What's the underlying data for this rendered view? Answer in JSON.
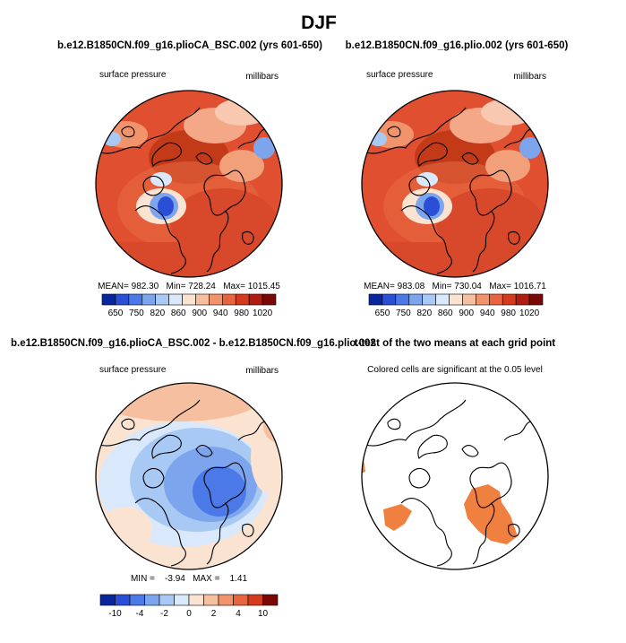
{
  "chart_data": {
    "type": "polar-map",
    "title": "DJF",
    "panels": [
      {
        "id": "control",
        "title": "b.e12.B1850CN.f09_g16.plioCA_BSC.002 (yrs 601-650)",
        "variable": "surface pressure",
        "units": "millibars",
        "stats_text": "MEAN= 982.30   Min= 728.24   Max= 1015.45",
        "stats": {
          "mean": 982.3,
          "min": 728.24,
          "max": 1015.45
        },
        "colorbar_ticks": [
          "650",
          "750",
          "820",
          "860",
          "900",
          "940",
          "980",
          "1020"
        ]
      },
      {
        "id": "test",
        "title": "b.e12.B1850CN.f09_g16.plio.002 (yrs 601-650)",
        "variable": "surface pressure",
        "units": "millibars",
        "stats_text": "MEAN= 983.08   Min= 730.04   Max= 1016.71",
        "stats": {
          "mean": 983.08,
          "min": 730.04,
          "max": 1016.71
        },
        "colorbar_ticks": [
          "650",
          "750",
          "820",
          "860",
          "900",
          "940",
          "980",
          "1020"
        ]
      },
      {
        "id": "difference",
        "title": "b.e12.B1850CN.f09_g16.plioCA_BSC.002 - b.e12.B1850CN.f09_g16.plio.002",
        "variable": "surface pressure",
        "units": "millibars",
        "stats_text": "MIN =    -3.94   MAX =    1.41",
        "stats": {
          "min": -3.94,
          "max": 1.41
        },
        "colorbar_ticks": [
          "-10",
          "-4",
          "-2",
          "0",
          "2",
          "4",
          "10"
        ]
      },
      {
        "id": "ttest",
        "title": "t-test of the two means at each grid point",
        "subtitle": "Colored cells are significant at the 0.05 level"
      }
    ]
  },
  "colors": {
    "abs_scale": [
      "#08269e",
      "#2a4fd6",
      "#4b79e8",
      "#7ca5ee",
      "#a9c9f5",
      "#d9e8fb",
      "#fbe3d2",
      "#f6c0a0",
      "#f1946c",
      "#e8643f",
      "#d43a1c",
      "#b01c10",
      "#7a0806"
    ],
    "diff_scale": [
      "#08269e",
      "#2a4fd6",
      "#4b79e8",
      "#7ca5ee",
      "#a9c9f5",
      "#d9e8fb",
      "#fbe3d2",
      "#f6c0a0",
      "#f1946c",
      "#e8643f",
      "#d43a1c",
      "#7a0806"
    ],
    "ttest_fill": "#f08040"
  }
}
